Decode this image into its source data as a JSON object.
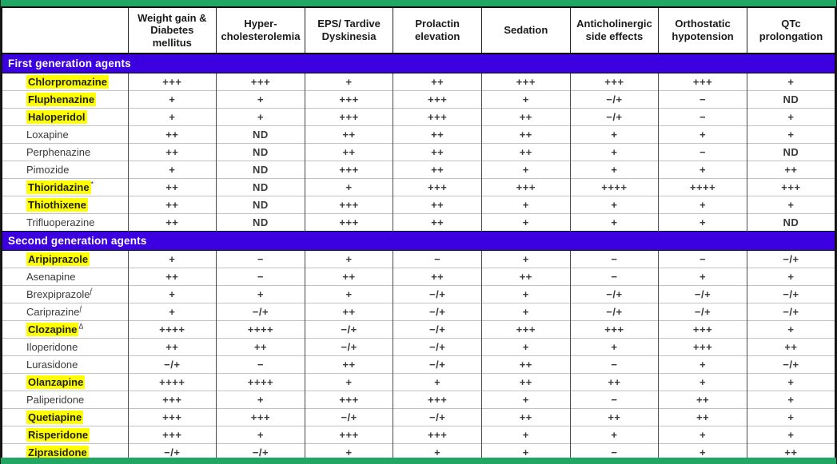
{
  "table": {
    "corner_label": "",
    "columns": [
      "Weight gain & Diabetes mellitus",
      "Hyper-cholesterolemia",
      "EPS/ Tardive Dyskinesia",
      "Prolactin elevation",
      "Sedation",
      "Anticholinergic side effects",
      "Orthostatic hypotension",
      "QTc prolongation"
    ],
    "rating_legend_symbols": [
      "++++",
      "+++",
      "++",
      "+",
      "−/+",
      "−",
      "ND"
    ],
    "sections": [
      {
        "label": "First generation agents",
        "rows": [
          {
            "name": "Chlorpromazine",
            "highlighted": true,
            "sup": "",
            "values": [
              "+++",
              "+++",
              "+",
              "++",
              "+++",
              "+++",
              "+++",
              "+"
            ]
          },
          {
            "name": "Fluphenazine",
            "highlighted": true,
            "sup": "",
            "values": [
              "+",
              "+",
              "+++",
              "+++",
              "+",
              "−/+",
              "−",
              "ND"
            ]
          },
          {
            "name": "Haloperidol",
            "highlighted": true,
            "sup": "",
            "values": [
              "+",
              "+",
              "+++",
              "+++",
              "++",
              "−/+",
              "−",
              "+"
            ]
          },
          {
            "name": "Loxapine",
            "highlighted": false,
            "sup": "",
            "values": [
              "++",
              "ND",
              "++",
              "++",
              "++",
              "+",
              "+",
              "+"
            ]
          },
          {
            "name": "Perphenazine",
            "highlighted": false,
            "sup": "",
            "values": [
              "++",
              "ND",
              "++",
              "++",
              "++",
              "+",
              "−",
              "ND"
            ]
          },
          {
            "name": "Pimozide",
            "highlighted": false,
            "sup": "",
            "values": [
              "+",
              "ND",
              "+++",
              "++",
              "+",
              "+",
              "+",
              "++"
            ]
          },
          {
            "name": "Thioridazine",
            "highlighted": true,
            "sup": "*",
            "values": [
              "++",
              "ND",
              "+",
              "+++",
              "+++",
              "++++",
              "++++",
              "+++"
            ]
          },
          {
            "name": "Thiothixene",
            "highlighted": true,
            "sup": "",
            "values": [
              "++",
              "ND",
              "+++",
              "++",
              "+",
              "+",
              "+",
              "+"
            ]
          },
          {
            "name": "Trifluoperazine",
            "highlighted": false,
            "sup": "",
            "values": [
              "++",
              "ND",
              "+++",
              "++",
              "+",
              "+",
              "+",
              "ND"
            ]
          }
        ]
      },
      {
        "label": "Second generation agents",
        "rows": [
          {
            "name": "Aripiprazole",
            "highlighted": true,
            "sup": "",
            "values": [
              "+",
              "−",
              "+",
              "−",
              "+",
              "−",
              "−",
              "−/+"
            ]
          },
          {
            "name": "Asenapine",
            "highlighted": false,
            "sup": "",
            "values": [
              "++",
              "−",
              "++",
              "++",
              "++",
              "−",
              "+",
              "+"
            ]
          },
          {
            "name": "Brexpiprazole",
            "highlighted": false,
            "sup": "f",
            "values": [
              "+",
              "+",
              "+",
              "−/+",
              "+",
              "−/+",
              "−/+",
              "−/+"
            ]
          },
          {
            "name": "Cariprazine",
            "highlighted": false,
            "sup": "f",
            "values": [
              "+",
              "−/+",
              "++",
              "−/+",
              "+",
              "−/+",
              "−/+",
              "−/+"
            ]
          },
          {
            "name": "Clozapine",
            "highlighted": true,
            "sup": "Δ",
            "values": [
              "++++",
              "++++",
              "−/+",
              "−/+",
              "+++",
              "+++",
              "+++",
              "+"
            ]
          },
          {
            "name": "Iloperidone",
            "highlighted": false,
            "sup": "",
            "values": [
              "++",
              "++",
              "−/+",
              "−/+",
              "+",
              "+",
              "+++",
              "++"
            ]
          },
          {
            "name": "Lurasidone",
            "highlighted": false,
            "sup": "",
            "values": [
              "−/+",
              "−",
              "++",
              "−/+",
              "++",
              "−",
              "+",
              "−/+"
            ]
          },
          {
            "name": "Olanzapine",
            "highlighted": true,
            "sup": "",
            "values": [
              "++++",
              "++++",
              "+",
              "+",
              "++",
              "++",
              "+",
              "+"
            ]
          },
          {
            "name": "Paliperidone",
            "highlighted": false,
            "sup": "",
            "values": [
              "+++",
              "+",
              "+++",
              "+++",
              "+",
              "−",
              "++",
              "+"
            ]
          },
          {
            "name": "Quetiapine",
            "highlighted": true,
            "sup": "",
            "values": [
              "+++",
              "+++",
              "−/+",
              "−/+",
              "++",
              "++",
              "++",
              "+"
            ]
          },
          {
            "name": "Risperidone",
            "highlighted": true,
            "sup": "",
            "values": [
              "+++",
              "+",
              "+++",
              "+++",
              "+",
              "+",
              "+",
              "+"
            ]
          },
          {
            "name": "Ziprasidone",
            "highlighted": true,
            "sup": "",
            "values": [
              "−/+",
              "−/+",
              "+",
              "+",
              "+",
              "−",
              "+",
              "++"
            ]
          }
        ]
      }
    ]
  },
  "colors": {
    "section_header_bg": "#3C00E0",
    "section_header_text": "#FFFFFF",
    "highlight": "#FFFF00",
    "accent_bar": "#21A663",
    "value_text": "#3A3A3A"
  }
}
